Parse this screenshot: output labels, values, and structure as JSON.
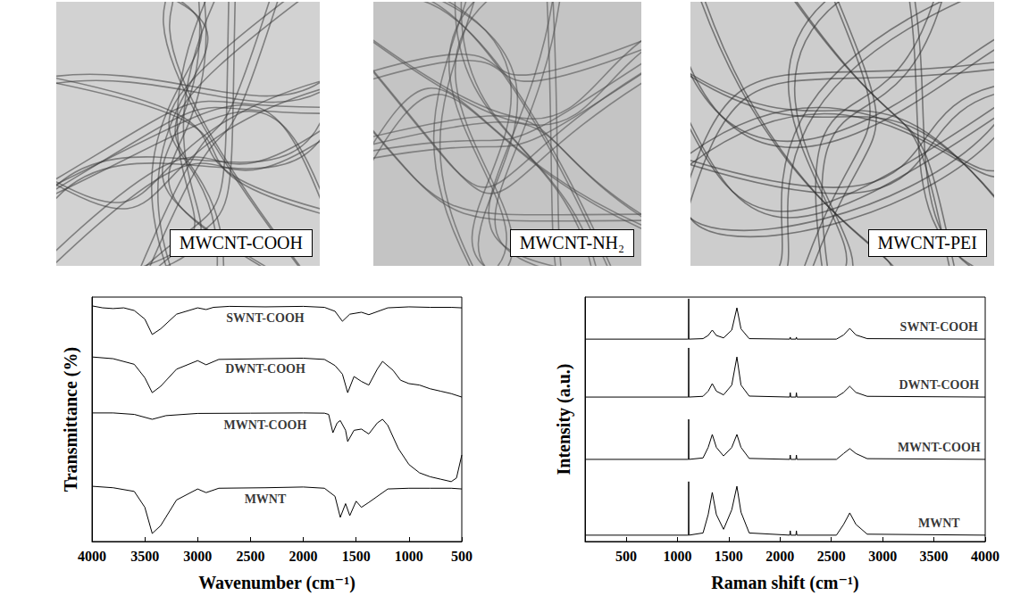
{
  "images": [
    {
      "label": "MWCNT-COOH"
    },
    {
      "label": "MWCNT-NH₂"
    },
    {
      "label": "MWCNT-PEI"
    }
  ],
  "chart_data": [
    {
      "type": "line",
      "x_label": "Wavenumber (cm⁻¹)",
      "y_label": "Transmittance (%)",
      "xlim": [
        4000,
        500
      ],
      "xticks": [
        4000,
        3500,
        3000,
        2500,
        2000,
        1500,
        1000,
        500
      ],
      "ylim": [
        0,
        100
      ],
      "tick_labels": "x",
      "series": [
        {
          "color": "#000000",
          "x": [
            4000,
            3900,
            3800,
            3700,
            3600,
            3500,
            3430,
            3350,
            3200,
            3000,
            2920,
            2850,
            2700,
            2360,
            2000,
            1800,
            1700,
            1630,
            1560,
            1450,
            1380,
            1200,
            1000,
            800,
            600,
            500
          ],
          "values": [
            96.4,
            95.6,
            95.3,
            95.6,
            94.5,
            91.0,
            84.7,
            87.0,
            93.0,
            95.6,
            94.9,
            95.8,
            96.2,
            96.0,
            96.2,
            95.8,
            94.2,
            90.1,
            93.0,
            93.8,
            92.8,
            95.6,
            96.0,
            95.8,
            95.8,
            95.6
          ]
        },
        {
          "color": "#000000",
          "x": [
            4000,
            3800,
            3600,
            3500,
            3430,
            3350,
            3200,
            3000,
            2920,
            2800,
            2360,
            2000,
            1800,
            1700,
            1630,
            1580,
            1520,
            1450,
            1380,
            1300,
            1250,
            1150,
            1080,
            1000,
            900,
            800,
            700,
            600,
            500
          ],
          "values": [
            75.5,
            74.8,
            72.5,
            67.0,
            60.9,
            63.5,
            70.5,
            74.0,
            72.3,
            74.5,
            74.8,
            75.0,
            74.5,
            72.0,
            68.5,
            60.9,
            67.5,
            65.5,
            64.0,
            70.5,
            73.7,
            70.0,
            66.0,
            64.6,
            64.0,
            62.5,
            61.5,
            60.5,
            59.1
          ]
        },
        {
          "color": "#000000",
          "x": [
            4000,
            3800,
            3600,
            3430,
            3300,
            3000,
            2500,
            2000,
            1800,
            1760,
            1720,
            1680,
            1650,
            1600,
            1580,
            1520,
            1450,
            1380,
            1300,
            1250,
            1200,
            1100,
            1000,
            900,
            800,
            700,
            600,
            550,
            500
          ],
          "values": [
            52.6,
            52.6,
            52.0,
            50.0,
            51.5,
            52.4,
            52.5,
            52.6,
            52.5,
            52.0,
            44.5,
            48.5,
            49.5,
            45.5,
            40.9,
            45.5,
            46.0,
            44.0,
            48.5,
            50.0,
            47.5,
            38.0,
            31.5,
            28.1,
            26.5,
            25.5,
            24.5,
            26.0,
            35.4
          ]
        },
        {
          "color": "#000000",
          "x": [
            4000,
            3800,
            3600,
            3500,
            3430,
            3350,
            3200,
            3000,
            2920,
            2800,
            2360,
            2000,
            1800,
            1700,
            1650,
            1600,
            1560,
            1500,
            1450,
            1380,
            1200,
            1000,
            800,
            600,
            500
          ],
          "values": [
            22.6,
            22.0,
            20.5,
            14.0,
            3.3,
            6.5,
            17.0,
            21.5,
            20.0,
            21.8,
            22.0,
            22.3,
            21.8,
            18.5,
            9.9,
            15.5,
            10.6,
            16.5,
            14.0,
            16.0,
            21.5,
            21.8,
            21.8,
            21.8,
            21.5
          ]
        }
      ],
      "annotations": [
        {
          "text": "SWNT-COOH",
          "x": 2360,
          "y": 91.4
        },
        {
          "text": "DWNT-COOH",
          "x": 2360,
          "y": 70.5
        },
        {
          "text": "MWNT-COOH",
          "x": 2360,
          "y": 47.5
        },
        {
          "text": "MWNT",
          "x": 2360,
          "y": 17.5
        }
      ]
    },
    {
      "type": "line",
      "x_label": "Raman shift (cm⁻¹)",
      "y_label": "Intensity (a.u.)",
      "xlim": [
        100,
        4000
      ],
      "xticks": [
        500,
        1000,
        1500,
        2000,
        2500,
        3000,
        3500,
        4000
      ],
      "ylim": [
        0,
        100
      ],
      "tick_labels": "x",
      "series": [
        {
          "color": "#000000",
          "x": [
            100,
            1100,
            1108,
            1110,
            1112,
            1250,
            1300,
            1340,
            1380,
            1450,
            1530,
            1580,
            1620,
            1700,
            2095,
            2100,
            2105,
            2155,
            2160,
            2165,
            2550,
            2620,
            2680,
            2740,
            2850,
            4000
          ],
          "values": [
            82.8,
            82.8,
            82.8,
            99.3,
            82.8,
            83.0,
            84.3,
            86.5,
            84.3,
            83.3,
            86.5,
            95.6,
            87.0,
            83.0,
            82.8,
            83.6,
            82.8,
            82.8,
            83.6,
            82.8,
            82.8,
            84.5,
            87.2,
            84.5,
            83.0,
            82.8
          ]
        },
        {
          "color": "#000000",
          "x": [
            100,
            1100,
            1108,
            1110,
            1112,
            1250,
            1300,
            1340,
            1380,
            1450,
            1530,
            1580,
            1620,
            1700,
            2095,
            2100,
            2105,
            2155,
            2160,
            2165,
            2550,
            2620,
            2680,
            2740,
            2850,
            4000
          ],
          "values": [
            59.1,
            59.1,
            59.1,
            79.2,
            59.1,
            59.4,
            61.5,
            64.6,
            61.5,
            60.0,
            64.0,
            75.5,
            64.0,
            59.5,
            59.1,
            60.9,
            59.1,
            59.1,
            60.9,
            59.1,
            59.1,
            61.0,
            63.5,
            61.0,
            59.4,
            59.1
          ]
        },
        {
          "color": "#000000",
          "x": [
            100,
            1100,
            1108,
            1110,
            1112,
            1250,
            1300,
            1340,
            1380,
            1450,
            1530,
            1580,
            1620,
            1700,
            2095,
            2100,
            2105,
            2155,
            2160,
            2165,
            2550,
            2620,
            2680,
            2740,
            2850,
            4000
          ],
          "values": [
            33.6,
            33.6,
            33.6,
            50.0,
            33.6,
            34.2,
            38.5,
            43.8,
            38.5,
            35.0,
            38.5,
            43.8,
            38.5,
            34.0,
            33.6,
            35.4,
            33.6,
            33.6,
            35.4,
            33.6,
            33.6,
            36.0,
            38.0,
            36.0,
            33.9,
            33.6
          ]
        },
        {
          "color": "#000000",
          "x": [
            100,
            1100,
            1108,
            1110,
            1112,
            1250,
            1300,
            1340,
            1380,
            1450,
            1530,
            1580,
            1620,
            1700,
            2095,
            2100,
            2105,
            2155,
            2160,
            2165,
            2550,
            2620,
            2680,
            2740,
            2850,
            4000
          ],
          "values": [
            2.6,
            2.6,
            2.6,
            24.5,
            2.6,
            3.5,
            11.0,
            20.1,
            11.0,
            5.0,
            13.0,
            22.6,
            12.0,
            3.5,
            2.6,
            4.4,
            2.6,
            2.6,
            4.4,
            2.6,
            2.6,
            7.0,
            11.7,
            7.0,
            3.0,
            2.6
          ]
        }
      ],
      "annotations": [
        {
          "text": "SWNT-COOH",
          "x": 3550,
          "y": 87.8
        },
        {
          "text": "DWNT-COOH",
          "x": 3550,
          "y": 64.1
        },
        {
          "text": "MWNT-COOH",
          "x": 3550,
          "y": 38.6
        },
        {
          "text": "MWNT",
          "x": 3550,
          "y": 7.6
        }
      ]
    }
  ]
}
